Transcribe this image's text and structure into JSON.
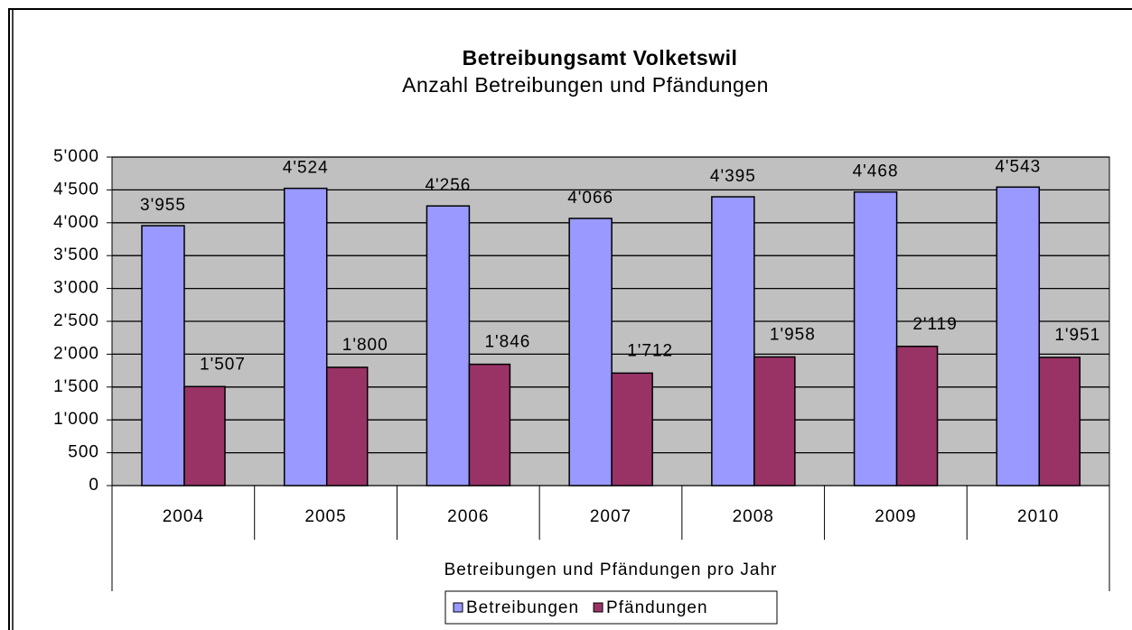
{
  "chart_data": {
    "type": "bar",
    "title": "Betreibungsamt Volketswil",
    "subtitle": "Anzahl Betreibungen und Pfändungen",
    "x_label": "Betreibungen und Pfändungen pro Jahr",
    "categories": [
      "2004",
      "2005",
      "2006",
      "2007",
      "2008",
      "2009",
      "2010"
    ],
    "series": [
      {
        "name": "Betreibungen",
        "color": "#9999ff",
        "values": [
          3955,
          4524,
          4256,
          4066,
          4395,
          4468,
          4543
        ],
        "value_labels": [
          "3'955",
          "4'524",
          "4'256",
          "4'066",
          "4'395",
          "4'468",
          "4'543"
        ]
      },
      {
        "name": "Pfändungen",
        "color": "#993366",
        "values": [
          1507,
          1800,
          1846,
          1712,
          1958,
          2119,
          1951
        ],
        "value_labels": [
          "1'507",
          "1'800",
          "1'846",
          "1'712",
          "1'958",
          "2'119",
          "1'951"
        ]
      }
    ],
    "ylim": [
      0,
      5000
    ],
    "yticks": [
      0,
      500,
      {
        "value": 1000,
        "label": "1'000"
      },
      {
        "value": 1500,
        "label": "1'500"
      },
      {
        "value": 2000,
        "label": "2'000"
      },
      {
        "value": 2500,
        "label": "2'500"
      },
      {
        "value": 3000,
        "label": "3'000"
      },
      {
        "value": 3500,
        "label": "3'500"
      },
      {
        "value": 4000,
        "label": "4'000"
      },
      {
        "value": 4500,
        "label": "4'500"
      },
      {
        "value": 5000,
        "label": "5'000"
      }
    ],
    "grid": true,
    "plot_background": "#c0c0c0",
    "legend": "bottom"
  }
}
